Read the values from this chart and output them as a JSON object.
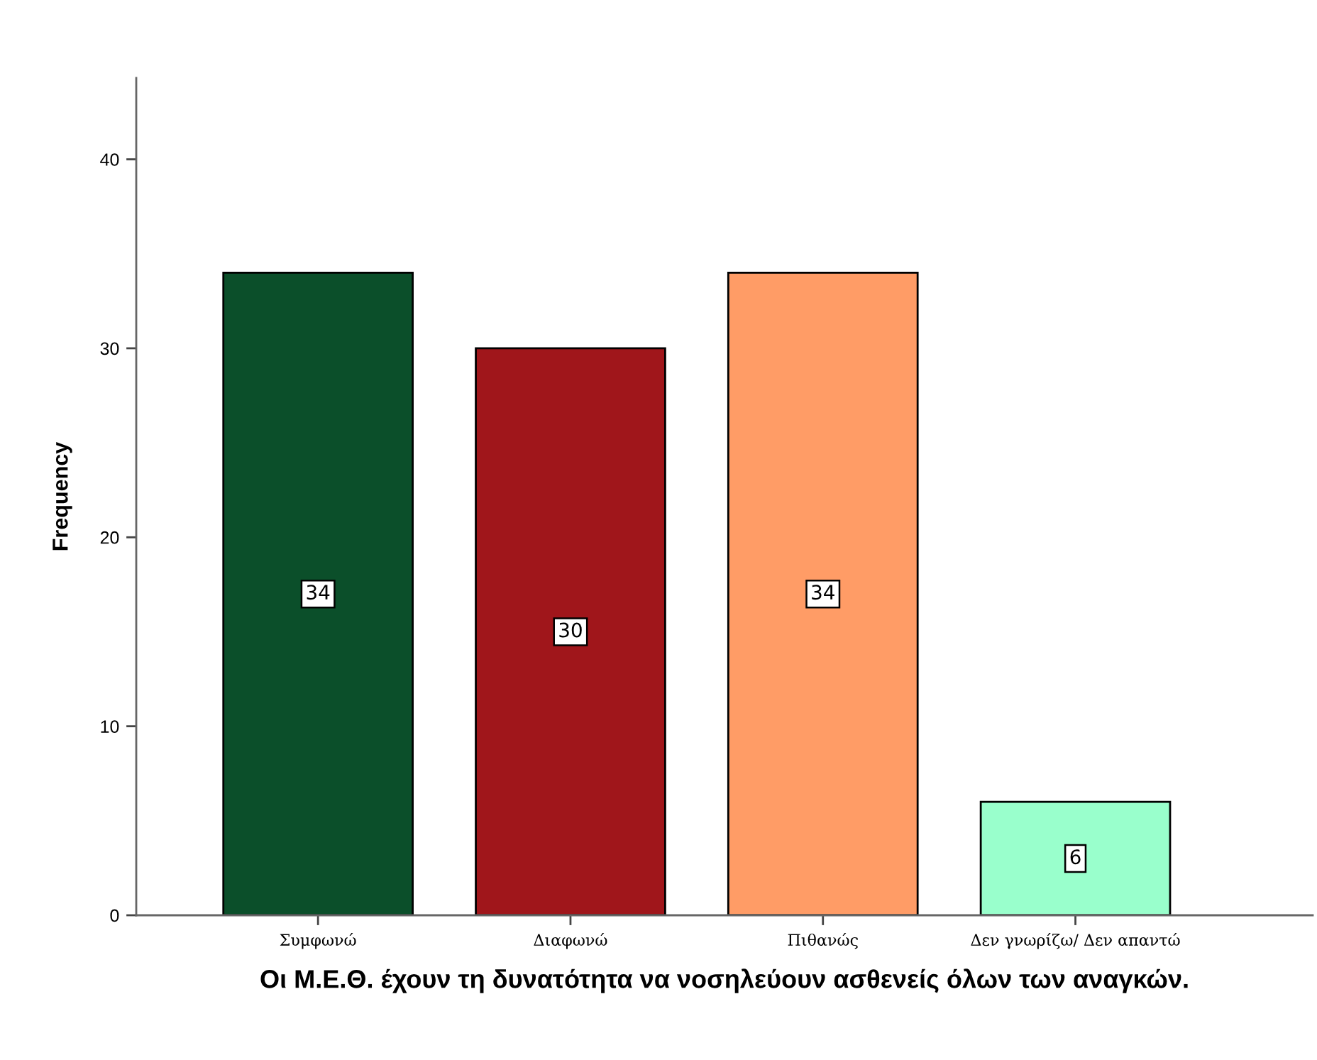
{
  "chart_data": {
    "type": "bar",
    "xlabel": "Οι Μ.Ε.Θ. έχουν τη δυνατότητα να νοσηλεύουν ασθενείς όλων των αναγκών.",
    "ylabel": "Frequency",
    "categories": [
      "Συμφωνώ",
      "Διαφωνώ",
      "Πιθανώς",
      "Δεν γνωρίζω/ Δεν απαντώ"
    ],
    "values": [
      34,
      30,
      34,
      6
    ],
    "colors": [
      "#0b4f2a",
      "#a0161b",
      "#ff9c66",
      "#99ffcc"
    ],
    "ylim": [
      0,
      44.3
    ],
    "yticks": [
      0,
      10,
      20,
      30,
      40
    ],
    "data_labels": true,
    "grid": false
  }
}
